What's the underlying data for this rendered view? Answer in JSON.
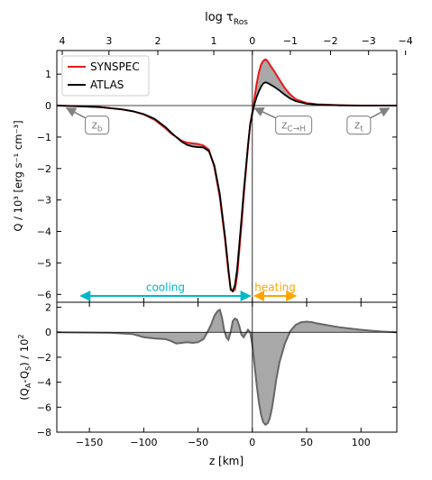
{
  "chart_data": [
    {
      "panel": "top",
      "type": "line",
      "top_axis": {
        "label_base": "log τ",
        "label_sub": "Ros",
        "ticks": [
          4,
          3,
          2,
          1,
          0,
          -1,
          -2,
          -3,
          -4
        ],
        "tick_labels": [
          "4",
          "3",
          "2",
          "1",
          "0",
          "−1",
          "−2",
          "−3",
          "−4"
        ],
        "z_positions": [
          -175,
          -132,
          -87,
          -35.5,
          0,
          35,
          72,
          107,
          141
        ]
      },
      "ylabel": "Q / 10³ [erg s⁻¹ cm⁻³]",
      "ylim": [
        -6.25,
        1.75
      ],
      "yticks": [
        1,
        0,
        -1,
        -2,
        -3,
        -4,
        -5,
        -6
      ],
      "ytick_labels": [
        "1",
        "0",
        "−1",
        "−2",
        "−3",
        "−4",
        "−5",
        "−6"
      ],
      "xlim": [
        -180,
        133
      ],
      "legend": {
        "placement": "top-left",
        "entries": [
          {
            "name": "SYNSPEC",
            "color": "#e8191c"
          },
          {
            "name": "ATLAS",
            "color": "#000000"
          }
        ]
      },
      "series": [
        {
          "name": "SYNSPEC",
          "color": "#e8191c",
          "x": [
            -180,
            -160,
            -140,
            -120,
            -110,
            -100,
            -90,
            -80,
            -75,
            -70,
            -65,
            -60,
            -55,
            -50,
            -45,
            -40,
            -35,
            -30,
            -25,
            -22,
            -20,
            -18,
            -16,
            -14,
            -12,
            -10,
            -8,
            -6,
            -4,
            -2,
            0,
            2,
            4,
            6,
            8,
            10,
            12,
            14,
            16,
            20,
            25,
            30,
            35,
            40,
            50,
            60,
            80,
            100,
            133
          ],
          "y": [
            0,
            -0.02,
            -0.05,
            -0.12,
            -0.18,
            -0.28,
            -0.45,
            -0.72,
            -0.88,
            -1.0,
            -1.12,
            -1.18,
            -1.2,
            -1.22,
            -1.27,
            -1.4,
            -1.95,
            -2.9,
            -4.3,
            -5.3,
            -5.8,
            -5.9,
            -5.85,
            -5.4,
            -4.6,
            -3.8,
            -2.9,
            -2.1,
            -1.3,
            -0.6,
            -0.2,
            0.25,
            0.7,
            1.05,
            1.3,
            1.42,
            1.47,
            1.42,
            1.3,
            1.1,
            0.82,
            0.55,
            0.35,
            0.2,
            0.08,
            0.04,
            0.01,
            0,
            0
          ]
        },
        {
          "name": "ATLAS",
          "color": "#000000",
          "x": [
            -180,
            -160,
            -140,
            -120,
            -110,
            -100,
            -90,
            -80,
            -75,
            -70,
            -65,
            -60,
            -55,
            -50,
            -45,
            -40,
            -35,
            -30,
            -25,
            -22,
            -20,
            -18,
            -16,
            -14,
            -12,
            -10,
            -8,
            -6,
            -4,
            -2,
            0,
            2,
            4,
            6,
            8,
            10,
            12,
            14,
            16,
            20,
            25,
            30,
            35,
            40,
            50,
            60,
            80,
            100,
            133
          ],
          "y": [
            0,
            -0.02,
            -0.05,
            -0.12,
            -0.18,
            -0.27,
            -0.42,
            -0.68,
            -0.85,
            -1.0,
            -1.15,
            -1.25,
            -1.3,
            -1.32,
            -1.33,
            -1.45,
            -1.9,
            -2.8,
            -4.2,
            -5.2,
            -5.85,
            -5.9,
            -5.7,
            -5.2,
            -4.4,
            -3.6,
            -2.75,
            -2.0,
            -1.25,
            -0.6,
            -0.25,
            0.05,
            0.28,
            0.45,
            0.6,
            0.7,
            0.74,
            0.72,
            0.68,
            0.6,
            0.48,
            0.34,
            0.22,
            0.14,
            0.06,
            0.03,
            0.01,
            0,
            0
          ]
        }
      ],
      "annotations": [
        {
          "id": "zb",
          "base": "z",
          "sub": "b",
          "box_x": -143,
          "box_y": -0.62,
          "arrow_to": [
            -171,
            -0.08
          ]
        },
        {
          "id": "zch",
          "base": "z",
          "sub": "C→H",
          "box_x": 38,
          "box_y": -0.62,
          "arrow_to": [
            2,
            -0.08
          ]
        },
        {
          "id": "zt",
          "base": "z",
          "sub": "t",
          "box_x": 98,
          "box_y": -0.62,
          "arrow_to": [
            126,
            -0.08
          ]
        }
      ],
      "regions": [
        {
          "label": "cooling",
          "color": "#00b7c7",
          "x_range": [
            -158,
            -2
          ],
          "y": -6.05,
          "label_y": -5.78
        },
        {
          "label": "heating",
          "color": "#ffa500",
          "x_range": [
            2,
            40
          ],
          "y": -6.05,
          "label_y": -5.78
        }
      ]
    },
    {
      "panel": "bottom",
      "type": "area",
      "ylabel_parts": [
        "(Q",
        "A",
        "-Q",
        "S",
        ") / 10",
        "2"
      ],
      "ylim": [
        -8,
        2.4
      ],
      "yticks": [
        2,
        0,
        -2,
        -4,
        -6,
        -8
      ],
      "ytick_labels": [
        "2",
        "0",
        "−2",
        "−4",
        "−6",
        "−8"
      ],
      "xlabel": "z [km]",
      "xlim": [
        -180,
        133
      ],
      "xticks": [
        -150,
        -100,
        -50,
        0,
        50,
        100
      ],
      "xtick_labels": [
        "−150",
        "−100",
        "−50",
        "0",
        "50",
        "100"
      ],
      "series": [
        {
          "name": "",
          "color": "#666666",
          "fill": "#a8a8a8",
          "x": [
            -180,
            -130,
            -110,
            -100,
            -90,
            -80,
            -75,
            -70,
            -65,
            -60,
            -55,
            -50,
            -45,
            -42,
            -38,
            -35,
            -32,
            -30,
            -28,
            -26,
            -24,
            -22,
            -20,
            -18,
            -16,
            -14,
            -12,
            -10,
            -8,
            -6,
            -4,
            -2,
            0,
            2,
            4,
            6,
            8,
            10,
            12,
            14,
            16,
            18,
            20,
            22,
            25,
            30,
            35,
            40,
            45,
            50,
            55,
            60,
            70,
            80,
            90,
            100,
            110,
            120,
            133
          ],
          "y": [
            0,
            -0.05,
            -0.15,
            -0.4,
            -0.5,
            -0.55,
            -0.7,
            -0.9,
            -0.85,
            -0.8,
            -0.85,
            -0.8,
            -0.55,
            -0.1,
            0.6,
            1.3,
            1.7,
            1.8,
            1.2,
            0.2,
            -0.4,
            -0.6,
            0.0,
            0.9,
            1.1,
            1.0,
            0.5,
            -0.2,
            -0.4,
            -0.1,
            0.2,
            0.0,
            -1.0,
            -2.6,
            -4.2,
            -5.6,
            -6.6,
            -7.2,
            -7.4,
            -7.3,
            -6.9,
            -6.1,
            -5.0,
            -3.8,
            -2.4,
            -0.9,
            0.1,
            0.6,
            0.8,
            0.85,
            0.8,
            0.7,
            0.55,
            0.4,
            0.3,
            0.2,
            0.12,
            0.05,
            0
          ]
        }
      ]
    }
  ]
}
